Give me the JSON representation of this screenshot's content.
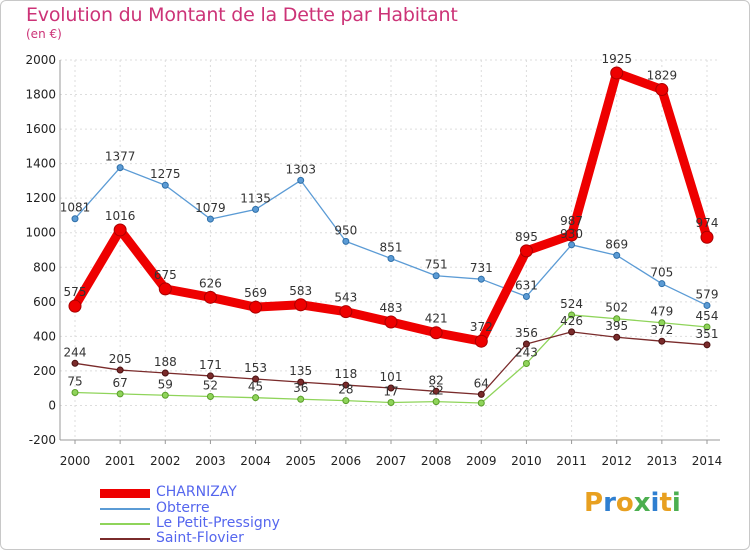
{
  "title": "Evolution du Montant de la Dette par Habitant",
  "subtitle": "(en €)",
  "brand": {
    "text": "Proxiti",
    "colors": [
      "#e8a020",
      "#2f7fd0",
      "#e8a020",
      "#4caf50",
      "#2f7fd0",
      "#e8a020",
      "#4caf50"
    ]
  },
  "chart_data": {
    "type": "line",
    "x": [
      "2000",
      "2001",
      "2002",
      "2003",
      "2004",
      "2005",
      "2006",
      "2007",
      "2008",
      "2009",
      "2010",
      "2011",
      "2012",
      "2013",
      "2014"
    ],
    "ylim": [
      -200,
      2000
    ],
    "yticks": [
      -200,
      0,
      200,
      400,
      600,
      800,
      1000,
      1200,
      1400,
      1600,
      1800,
      2000
    ],
    "grid": true,
    "legend_position": "bottom-left",
    "series": [
      {
        "name": "Obterre",
        "color": "#5b9bd5",
        "values": [
          1081,
          1377,
          1275,
          1079,
          1135,
          1303,
          950,
          851,
          751,
          731,
          631,
          930,
          869,
          705,
          579
        ],
        "labels": [
          "1081",
          "1377",
          "1275",
          "1079",
          "1135",
          "1303",
          "950",
          "851",
          "751",
          "731",
          "631",
          "930",
          "869",
          "705",
          "579"
        ]
      },
      {
        "name": "Le Petit-Pressigny",
        "color": "#8fd45a",
        "values": [
          75,
          67,
          59,
          52,
          45,
          36,
          28,
          17,
          22,
          14,
          243,
          524,
          502,
          479,
          454
        ],
        "labels": [
          "75",
          "67",
          "59",
          "52",
          "45",
          "36",
          "28",
          "17",
          "22",
          "",
          "243",
          "524",
          "502",
          "479",
          "454"
        ]
      },
      {
        "name": "Saint-Flovier",
        "color": "#7a2b2b",
        "values": [
          244,
          205,
          188,
          171,
          153,
          135,
          118,
          101,
          82,
          64,
          356,
          426,
          395,
          372,
          351
        ],
        "labels": [
          "244",
          "205",
          "188",
          "171",
          "153",
          "135",
          "118",
          "101",
          "82",
          "64",
          "356",
          "426",
          "395",
          "372",
          "351"
        ]
      },
      {
        "name": "CHARNIZAY",
        "color": "#ee0000",
        "values": [
          575,
          1016,
          675,
          626,
          569,
          583,
          543,
          483,
          421,
          372,
          895,
          987,
          1925,
          1829,
          974
        ],
        "labels": [
          "575",
          "1016",
          "675",
          "626",
          "569",
          "583",
          "543",
          "483",
          "421",
          "372",
          "895",
          "987",
          "1925",
          "1829",
          "974"
        ]
      }
    ],
    "legend": [
      "CHARNIZAY",
      "Obterre",
      "Le Petit-Pressigny",
      "Saint-Flovier"
    ]
  }
}
